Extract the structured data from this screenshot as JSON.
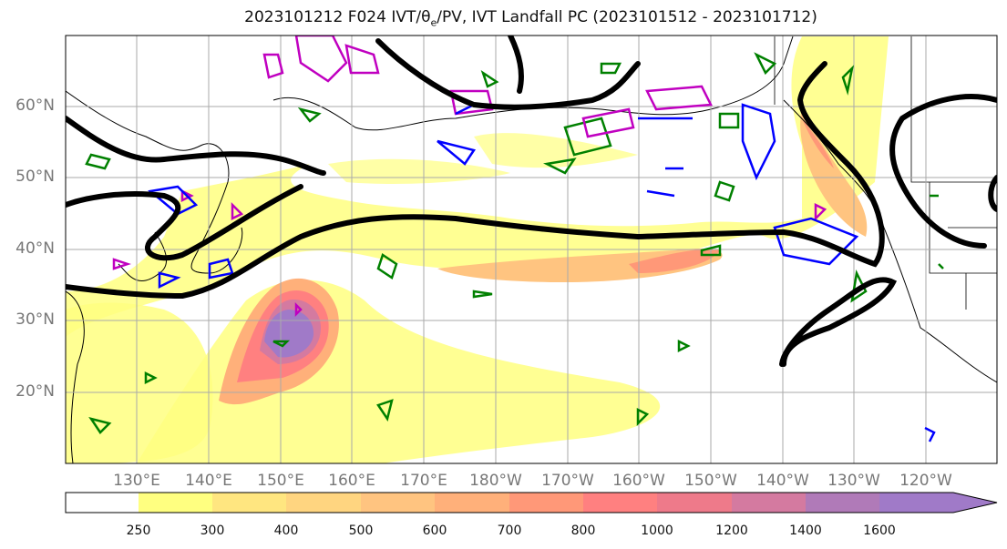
{
  "title": {
    "prefix": "2023101212 F024 IVT/",
    "theta": "θ",
    "theta_sub": "e",
    "suffix": "/PV, IVT Landfall PC (2023101512 - 2023101712)"
  },
  "axes": {
    "lat_labels": [
      "60°N",
      "50°N",
      "40°N",
      "30°N",
      "20°N"
    ],
    "lon_labels": [
      "130°E",
      "140°E",
      "150°E",
      "160°E",
      "170°E",
      "180°W",
      "170°W",
      "160°W",
      "150°W",
      "140°W",
      "130°W",
      "120°W"
    ]
  },
  "colorbar": {
    "ticks": [
      "250",
      "300",
      "400",
      "500",
      "600",
      "700",
      "800",
      "1000",
      "1200",
      "1400",
      "1600"
    ],
    "colors": [
      "#ffffff",
      "#ffff80",
      "#ffe680",
      "#ffd580",
      "#ffc480",
      "#ffb07a",
      "#ff9878",
      "#ff8080",
      "#ee7a8a",
      "#d47aa0",
      "#b07ab8",
      "#a07ac8"
    ]
  },
  "legend_colors": {
    "pv_contour": "#008000",
    "theta_e_pos": "#c000c0",
    "theta_e_neg": "#0000ff",
    "pc_line": "#000000"
  }
}
